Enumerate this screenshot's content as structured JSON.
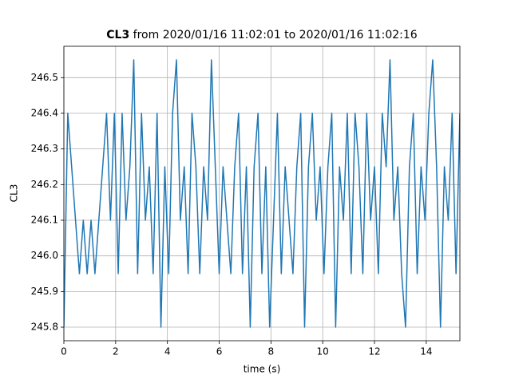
{
  "chart_data": {
    "type": "line",
    "title_label": "CL3",
    "title": "from 2020/01/16 11:02:01 to 2020/01/16 11:02:16",
    "xlabel": "time (s)",
    "ylabel": "CL3",
    "color": "#1f77b4",
    "grid": true,
    "xlim": [
      0,
      15.3
    ],
    "xticks": [
      0,
      2,
      4,
      6,
      8,
      10,
      12,
      14
    ],
    "ylim": [
      245.762,
      246.588
    ],
    "yticks": [
      245.8,
      245.9,
      246.0,
      246.1,
      246.2,
      246.3,
      246.4,
      246.5
    ],
    "x": [
      0,
      0.15,
      0.3,
      0.45,
      0.6,
      0.75,
      0.9,
      1.05,
      1.2,
      1.35,
      1.5,
      1.65,
      1.8,
      1.95,
      2.1,
      2.25,
      2.4,
      2.55,
      2.7,
      2.85,
      3,
      3.15,
      3.3,
      3.45,
      3.6,
      3.75,
      3.9,
      4.05,
      4.2,
      4.35,
      4.5,
      4.65,
      4.8,
      4.95,
      5.1,
      5.25,
      5.4,
      5.55,
      5.7,
      5.85,
      6,
      6.15,
      6.3,
      6.45,
      6.6,
      6.75,
      6.9,
      7.05,
      7.2,
      7.35,
      7.5,
      7.65,
      7.8,
      7.95,
      8.1,
      8.25,
      8.4,
      8.55,
      8.7,
      8.85,
      9,
      9.15,
      9.3,
      9.45,
      9.6,
      9.75,
      9.9,
      10.05,
      10.2,
      10.35,
      10.5,
      10.65,
      10.8,
      10.95,
      11.1,
      11.25,
      11.4,
      11.55,
      11.7,
      11.85,
      12,
      12.15,
      12.3,
      12.45,
      12.6,
      12.75,
      12.9,
      13.05,
      13.2,
      13.35,
      13.5,
      13.65,
      13.8,
      13.95,
      14.1,
      14.25,
      14.4,
      14.55,
      14.7,
      14.85,
      15,
      15.15,
      15.3
    ],
    "values": [
      245.8,
      246.4,
      246.25,
      246.1,
      245.95,
      246.1,
      245.95,
      246.1,
      245.95,
      246.1,
      246.25,
      246.4,
      246.1,
      246.4,
      245.95,
      246.4,
      246.1,
      246.25,
      246.55,
      245.95,
      246.4,
      246.1,
      246.25,
      245.95,
      246.4,
      245.8,
      246.25,
      245.95,
      246.4,
      246.55,
      246.1,
      246.25,
      245.95,
      246.4,
      246.25,
      245.95,
      246.25,
      246.1,
      246.55,
      246.25,
      245.95,
      246.25,
      246.1,
      245.95,
      246.25,
      246.4,
      245.95,
      246.25,
      245.8,
      246.25,
      246.4,
      245.95,
      246.25,
      245.8,
      246.1,
      246.4,
      245.95,
      246.25,
      246.1,
      245.95,
      246.25,
      246.4,
      245.8,
      246.25,
      246.4,
      246.1,
      246.25,
      245.95,
      246.25,
      246.4,
      245.8,
      246.25,
      246.1,
      246.4,
      245.95,
      246.4,
      246.25,
      245.95,
      246.4,
      246.1,
      246.25,
      245.95,
      246.4,
      246.25,
      246.55,
      246.1,
      246.25,
      245.95,
      245.8,
      246.25,
      246.4,
      245.95,
      246.25,
      246.1,
      246.4,
      246.55,
      246.25,
      245.8,
      246.25,
      246.1,
      246.4,
      245.95,
      246.4
    ]
  }
}
